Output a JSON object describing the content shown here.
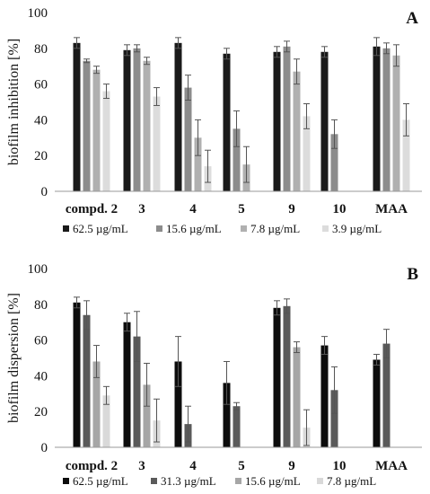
{
  "chart_data": [
    {
      "type": "bar",
      "panel_label": "A",
      "ylabel": "biofilm inhibition [%]",
      "ylim": [
        0,
        100
      ],
      "yticks": [
        0,
        20,
        40,
        60,
        80,
        100
      ],
      "grid": false,
      "legend_position": "bottom",
      "categories": [
        "compd. 2",
        "3",
        "4",
        "5",
        "9",
        "10",
        "MAA"
      ],
      "series": [
        {
          "name": "62.5 µg/mL",
          "color": "#1a1a1a",
          "values": [
            83,
            79,
            83,
            77,
            78,
            78,
            81
          ],
          "errors": [
            3,
            3,
            3,
            3,
            3,
            3,
            5
          ]
        },
        {
          "name": "15.6 µg/mL",
          "color": "#8c8c8c",
          "values": [
            73,
            80,
            58,
            35,
            81,
            32,
            80
          ],
          "errors": [
            1,
            2,
            7,
            10,
            3,
            8,
            3
          ]
        },
        {
          "name": "7.8 µg/mL",
          "color": "#b0b0b0",
          "values": [
            68,
            73,
            30,
            15,
            67,
            null,
            76
          ],
          "errors": [
            2,
            2,
            10,
            10,
            7,
            null,
            6
          ]
        },
        {
          "name": "3.9 µg/mL",
          "color": "#dcdcdc",
          "values": [
            56,
            53,
            14,
            null,
            42,
            null,
            40
          ],
          "errors": [
            4,
            5,
            9,
            null,
            7,
            null,
            9
          ]
        }
      ]
    },
    {
      "type": "bar",
      "panel_label": "B",
      "ylabel": "biofilm dispersion [%]",
      "ylim": [
        0,
        100
      ],
      "yticks": [
        0,
        20,
        40,
        60,
        80,
        100
      ],
      "grid": false,
      "legend_position": "bottom",
      "categories": [
        "compd. 2",
        "3",
        "4",
        "5",
        "9",
        "10",
        "MAA"
      ],
      "series": [
        {
          "name": "62.5 µg/mL",
          "color": "#0d0d0d",
          "values": [
            81,
            70,
            48,
            36,
            78,
            57,
            49
          ],
          "errors": [
            3,
            5,
            14,
            12,
            4,
            5,
            3
          ]
        },
        {
          "name": "31.3 µg/mL",
          "color": "#5a5a5a",
          "values": [
            74,
            62,
            13,
            23,
            79,
            32,
            58
          ],
          "errors": [
            8,
            14,
            10,
            2,
            4,
            13,
            8
          ]
        },
        {
          "name": "15.6 µg/mL",
          "color": "#a6a6a6",
          "values": [
            48,
            35,
            null,
            null,
            56,
            null,
            null
          ],
          "errors": [
            9,
            12,
            null,
            null,
            3,
            null,
            null
          ]
        },
        {
          "name": "7.8 µg/mL",
          "color": "#d9d9d9",
          "values": [
            29,
            15,
            null,
            null,
            11,
            null,
            null
          ],
          "errors": [
            5,
            12,
            null,
            null,
            10,
            null,
            null
          ]
        }
      ]
    }
  ]
}
